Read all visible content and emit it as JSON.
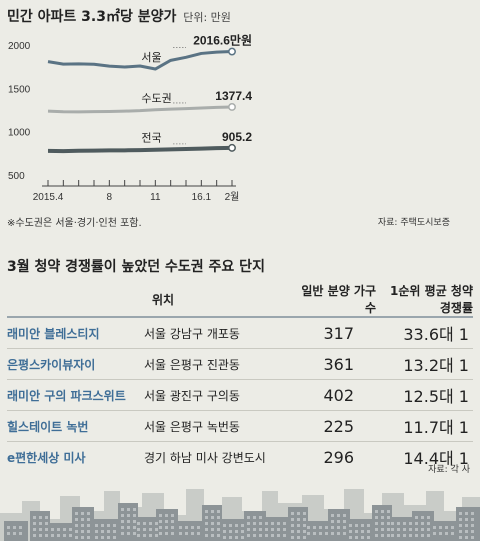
{
  "title": "민간 아파트 3.3㎡당 분양가",
  "unit_label": "단위: 만원",
  "note": "※수도권은 서울·경기·인천 포함.",
  "chart_source": "자료: 주택도시보증",
  "chart_data": {
    "type": "line",
    "title": "민간 아파트 3.3㎡당 분양가",
    "ylabel": "단위: 만원",
    "y_ticks": [
      "2000",
      "1500",
      "1000",
      "500"
    ],
    "ylim": [
      500,
      2150
    ],
    "x_ticks": [
      "2015.4",
      "8",
      "11",
      "16.1",
      "2월"
    ],
    "grid": false,
    "legend": "none",
    "series": [
      {
        "name": "서울",
        "end_label": "2016.6만원",
        "color": "#5a7384",
        "values": [
          1900,
          1872,
          1875,
          1870,
          1848,
          1838,
          1850,
          1815,
          1915,
          1950,
          1995,
          2010,
          2016.6
        ]
      },
      {
        "name": "수도권",
        "end_label": "1377.4",
        "color": "#a9adab",
        "values": [
          1330,
          1322,
          1320,
          1323,
          1325,
          1329,
          1335,
          1345,
          1352,
          1358,
          1365,
          1372,
          1377.4
        ]
      },
      {
        "name": "전국",
        "end_label": "905.2",
        "color": "#4f5b5e",
        "values": [
          870,
          868,
          872,
          873,
          876,
          877,
          880,
          884,
          888,
          892,
          897,
          902,
          905.2
        ]
      }
    ]
  },
  "table": {
    "title": "3월 청약 경쟁률이 높았던 수도권 주요 단지",
    "headers": [
      "",
      "위치",
      "일반 분양 가구 수",
      "1순위 평균 청약 경쟁률"
    ],
    "rows": [
      {
        "name": "래미안 블레스티지",
        "location": "서울 강남구 개포동",
        "units": "317",
        "competition": "33.6대 1"
      },
      {
        "name": "은평스카이뷰자이",
        "location": "서울 은평구 진관동",
        "units": "361",
        "competition": "13.2대 1"
      },
      {
        "name": "래미안 구의 파크스위트",
        "location": "서울 광진구 구의동",
        "units": "402",
        "competition": "12.5대 1"
      },
      {
        "name": "힐스테이트 녹번",
        "location": "서울 은평구 녹번동",
        "units": "225",
        "competition": "11.7대 1"
      },
      {
        "name": "e편한세상 미사",
        "location": "경기 하남 미사 강변도시",
        "units": "296",
        "competition": "14.4대 1"
      }
    ],
    "source": "자료: 각 사"
  }
}
